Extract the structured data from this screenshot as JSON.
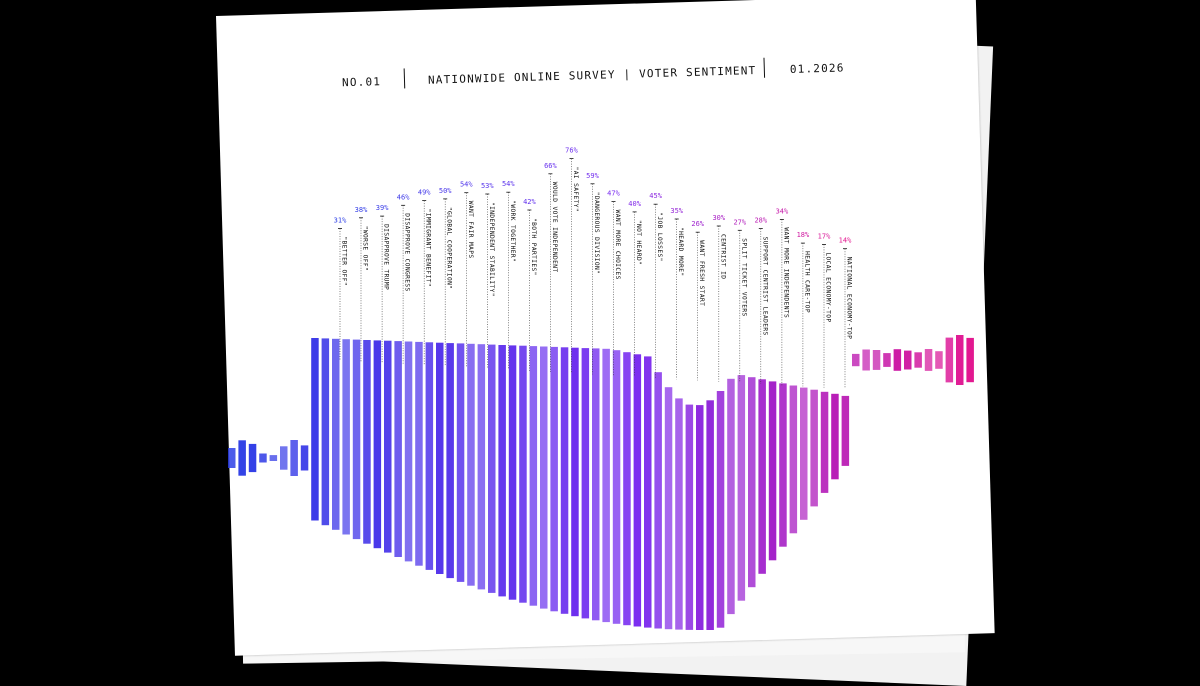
{
  "header": {
    "issue": "NO.01",
    "title": "NATIONWIDE ONLINE SURVEY | VOTER SENTIMENT",
    "date": "01.2026"
  },
  "colors": {
    "start": "#2d3fe6",
    "mid": "#7a2cf0",
    "end": "#e3158f",
    "background": "#000000",
    "paper": "#ffffff"
  },
  "chart_data": {
    "type": "bar",
    "title": "",
    "categories": [
      "\"BETTER OFF\"",
      "\"WORSE OFF\"",
      "DISAPPROVE TRUMP",
      "DISAPPROVE CONGRESS",
      "\"IMMIGRANT BENEFIT\"",
      "\"GLOBAL COOPERATION\"",
      "WANT FAIR MAPS",
      "\"INDEPENDENT STABILITY\"",
      "\"WORK TOGETHER\"",
      "\"BOTH PARTIES\"",
      "WOULD VOTE INDEPENDENT",
      "\"AI SAFETY\"",
      "\"DANGEROUS DIVISION\"",
      "WANT MORE CHOICES",
      "\"NOT HEARD\"",
      "\"JOB LOSSES\"",
      "\"HEARD MORE\"",
      "WANT FRESH START",
      "CENTRIST ID",
      "SPLIT TICKET VOTERS",
      "SUPPORT CENTRIST LEADERS",
      "WANT MORE INDEPENDENTS",
      "HEALTH CARE-TOP",
      "LOCAL ECONOMY-TOP",
      "NATIONAL ECONOMY-TOP"
    ],
    "values": [
      31,
      38,
      39,
      46,
      49,
      50,
      54,
      53,
      54,
      42,
      66,
      76,
      59,
      47,
      40,
      45,
      35,
      26,
      30,
      27,
      28,
      34,
      18,
      17,
      14
    ],
    "value_labels": [
      "31%",
      "38%",
      "39%",
      "46%",
      "49%",
      "50%",
      "54%",
      "53%",
      "54%",
      "42%",
      "66%",
      "76%",
      "59%",
      "47%",
      "40%",
      "45%",
      "35%",
      "26%",
      "30%",
      "27%",
      "28%",
      "34%",
      "18%",
      "17%",
      "14%"
    ],
    "unit": "%",
    "grid": false,
    "legend": "none"
  }
}
